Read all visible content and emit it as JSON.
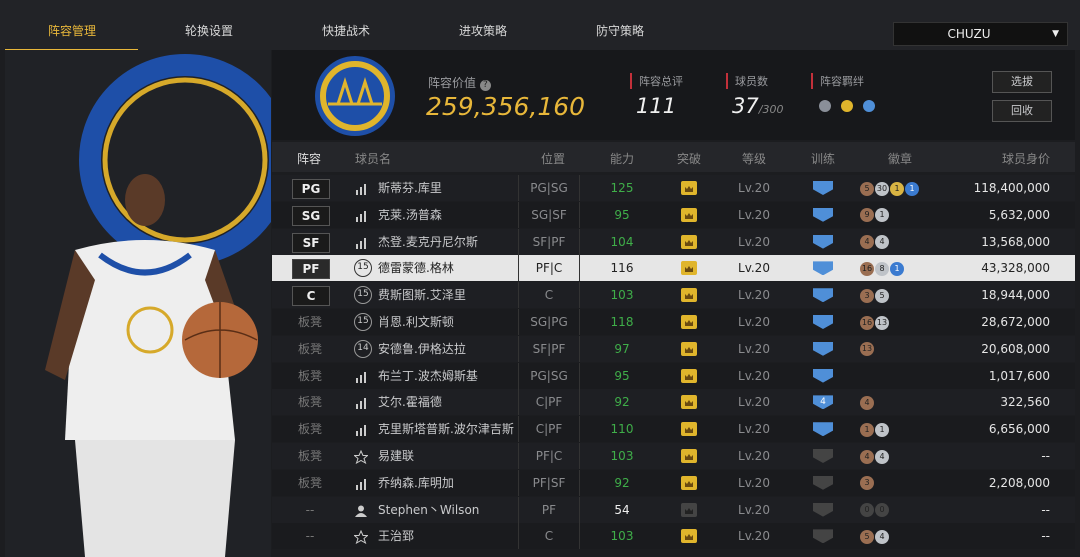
{
  "tabs": [
    "阵容管理",
    "轮换设置",
    "快捷战术",
    "进攻策略",
    "防守策略"
  ],
  "dropdown": "CHUZU",
  "header": {
    "value_label": "阵容价值",
    "value": "259,356,160",
    "overall_label": "阵容总评",
    "overall": "111",
    "count_label": "球员数",
    "count": "37",
    "count_max": "/300",
    "bond_label": "阵容羁绊",
    "buttons": [
      "选拔",
      "回收"
    ]
  },
  "table": {
    "columns": [
      "阵容",
      "球员名",
      "位置",
      "能力",
      "突破",
      "等级",
      "训练",
      "徽章",
      "球员身价"
    ],
    "rows": [
      {
        "slot": "PG",
        "icon": "bars",
        "name": "斯蒂芬.库里",
        "position": "PG|SG",
        "ability": "125",
        "green": true,
        "level": "Lv.20",
        "train_on": true,
        "badges": [
          {
            "n": "5",
            "tier": "bronze"
          },
          {
            "n": "30",
            "tier": "silver"
          },
          {
            "n": "1",
            "tier": "gold"
          },
          {
            "n": "1",
            "tier": "blue"
          }
        ],
        "price": "118,400,000"
      },
      {
        "slot": "SG",
        "icon": "bars",
        "name": "克莱.汤普森",
        "position": "SG|SF",
        "ability": "95",
        "green": true,
        "level": "Lv.20",
        "train_on": true,
        "badges": [
          {
            "n": "9",
            "tier": "bronze"
          },
          {
            "n": "1",
            "tier": "silver"
          }
        ],
        "price": "5,632,000"
      },
      {
        "slot": "SF",
        "icon": "bars",
        "name": "杰登.麦克丹尼尔斯",
        "position": "SF|PF",
        "ability": "104",
        "green": true,
        "level": "Lv.20",
        "train_on": true,
        "badges": [
          {
            "n": "4",
            "tier": "bronze"
          },
          {
            "n": "4",
            "tier": "silver"
          }
        ],
        "price": "13,568,000"
      },
      {
        "slot": "PF",
        "icon": "number",
        "rank": "15",
        "name": "德雷蒙德.格林",
        "position": "PF|C",
        "ability": "116",
        "green": false,
        "level": "Lv.20",
        "train_on": true,
        "selected": true,
        "badges": [
          {
            "n": "16",
            "tier": "bronze"
          },
          {
            "n": "8",
            "tier": "silver"
          },
          {
            "n": "1",
            "tier": "blue"
          }
        ],
        "price": "43,328,000"
      },
      {
        "slot": "C",
        "icon": "number",
        "rank": "15",
        "name": "费斯图斯.艾泽里",
        "position": "C",
        "ability": "103",
        "green": true,
        "level": "Lv.20",
        "train_on": true,
        "badges": [
          {
            "n": "3",
            "tier": "bronze"
          },
          {
            "n": "5",
            "tier": "silver"
          }
        ],
        "price": "18,944,000"
      },
      {
        "slot": "板凳",
        "icon": "number",
        "rank": "15",
        "name": "肖恩.利文斯顿",
        "position": "SG|PG",
        "ability": "118",
        "green": true,
        "level": "Lv.20",
        "train_on": true,
        "badges": [
          {
            "n": "16",
            "tier": "bronze"
          },
          {
            "n": "13",
            "tier": "silver"
          }
        ],
        "price": "28,672,000"
      },
      {
        "slot": "板凳",
        "icon": "number",
        "rank": "14",
        "name": "安德鲁.伊格达拉",
        "position": "SF|PF",
        "ability": "97",
        "green": true,
        "level": "Lv.20",
        "train_on": true,
        "badges": [
          {
            "n": "13",
            "tier": "bronze"
          }
        ],
        "price": "20,608,000"
      },
      {
        "slot": "板凳",
        "icon": "bars",
        "name": "布兰丁.波杰姆斯基",
        "position": "PG|SG",
        "ability": "95",
        "green": true,
        "level": "Lv.20",
        "train_on": true,
        "badges": [],
        "price": "1,017,600"
      },
      {
        "slot": "板凳",
        "icon": "bars",
        "name": "艾尔.霍福德",
        "position": "C|PF",
        "ability": "92",
        "green": true,
        "level": "Lv.20",
        "train_on": true,
        "training": "4",
        "badges": [
          {
            "n": "4",
            "tier": "bronze"
          }
        ],
        "price": "322,560"
      },
      {
        "slot": "板凳",
        "icon": "bars",
        "name": "克里斯塔普斯.波尔津吉斯",
        "position": "C|PF",
        "ability": "110",
        "green": true,
        "level": "Lv.20",
        "train_on": true,
        "badges": [
          {
            "n": "1",
            "tier": "bronze"
          },
          {
            "n": "1",
            "tier": "silver"
          }
        ],
        "price": "6,656,000"
      },
      {
        "slot": "板凳",
        "icon": "star",
        "name": "易建联",
        "position": "PF|C",
        "ability": "103",
        "green": true,
        "level": "Lv.20",
        "train_on": false,
        "badges": [
          {
            "n": "4",
            "tier": "bronze"
          },
          {
            "n": "4",
            "tier": "silver"
          }
        ],
        "price": "--"
      },
      {
        "slot": "板凳",
        "icon": "bars",
        "name": "乔纳森.库明加",
        "position": "PF|SF",
        "ability": "92",
        "green": true,
        "level": "Lv.20",
        "train_on": false,
        "badges": [
          {
            "n": "3",
            "tier": "bronze"
          }
        ],
        "price": "2,208,000"
      },
      {
        "slot": "--",
        "icon": "person",
        "name": "Stephen丶Wilson",
        "position": "PF",
        "ability": "54",
        "green": false,
        "level": "Lv.20",
        "train_on": false,
        "break_off": true,
        "badges": [
          {
            "n": "0",
            "tier": "dim"
          },
          {
            "n": "0",
            "tier": "dim"
          }
        ],
        "price": "--"
      },
      {
        "slot": "--",
        "icon": "star",
        "name": "王治郅",
        "position": "C",
        "ability": "103",
        "green": true,
        "level": "Lv.20",
        "train_on": false,
        "badges": [
          {
            "n": "5",
            "tier": "bronze"
          },
          {
            "n": "4",
            "tier": "silver"
          }
        ],
        "price": "--"
      }
    ]
  }
}
